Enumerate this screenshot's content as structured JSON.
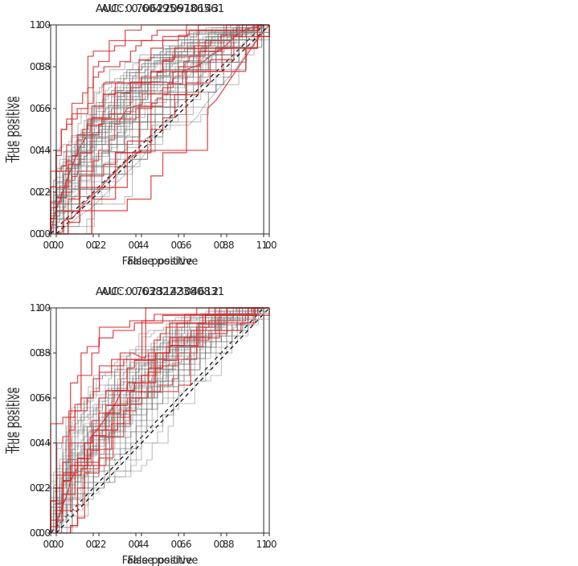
{
  "style": {
    "background": "#ffffff",
    "text_color": "#262626",
    "spine_color": "#2b2b2b",
    "gray_curve_color": "rgba(128,128,128,0.5)",
    "red_curve_color": "rgba(214,39,40,0.78)",
    "diagonal_color": "#141414"
  },
  "chart_data": [
    {
      "type": "line",
      "title": "AUC: 0.706220910143",
      "auc": 0.706220910143,
      "xlabel": "False positive",
      "ylabel": "True positive",
      "xlim": [
        0,
        1
      ],
      "ylim": [
        0,
        1
      ],
      "xticks": [
        "0.0",
        "0.2",
        "0.4",
        "0.6",
        "0.8",
        "1.0"
      ],
      "yticks": [
        "0.0",
        "0.2",
        "0.4",
        "0.6",
        "0.8",
        "1.0"
      ],
      "grid": false,
      "legend": "none",
      "diagonal_reference": true,
      "gray_curves": {
        "n_samples": 70,
        "seed": 101,
        "aucs": [
          0.68,
          0.71,
          0.73,
          0.69,
          0.7,
          0.72,
          0.67,
          0.74,
          0.7,
          0.69,
          0.71,
          0.66,
          0.72,
          0.7,
          0.68,
          0.73,
          0.71,
          0.69,
          0.75,
          0.7,
          0.67,
          0.72,
          0.68,
          0.71,
          0.74,
          0.69,
          0.7,
          0.72
        ]
      },
      "red_curves": {
        "n_samples": 40,
        "seed": 901,
        "aucs": [
          0.88,
          0.85,
          0.8,
          0.76,
          0.71,
          0.67
        ]
      },
      "extra_polylines": [
        {
          "color": "red",
          "points": [
            [
              0,
              0
            ],
            [
              0.02,
              0.1
            ],
            [
              0.05,
              0.18
            ],
            [
              0.08,
              0.27
            ],
            [
              0.11,
              0.35
            ],
            [
              0.14,
              0.42
            ],
            [
              0.17,
              0.47
            ],
            [
              0.17,
              0.52
            ],
            [
              0.24,
              0.52
            ],
            [
              0.24,
              0.55
            ],
            [
              0.33,
              0.55
            ],
            [
              0.36,
              0.6
            ],
            [
              0.43,
              0.62
            ],
            [
              0.43,
              0.67
            ],
            [
              0.55,
              0.67
            ],
            [
              0.55,
              0.72
            ],
            [
              0.62,
              0.72
            ],
            [
              0.62,
              0.78
            ],
            [
              0.7,
              0.81
            ],
            [
              0.76,
              0.86
            ],
            [
              0.82,
              0.9
            ],
            [
              0.87,
              0.95
            ],
            [
              0.92,
              0.98
            ],
            [
              1,
              1
            ]
          ]
        }
      ]
    },
    {
      "type": "line",
      "title": "AUC: 0.604956786561",
      "auc": 0.604956786561,
      "xlabel": "False positive",
      "ylabel": "True positive",
      "xlim": [
        0,
        1
      ],
      "ylim": [
        0,
        1
      ],
      "xticks": [
        "0.0",
        "0.2",
        "0.4",
        "0.6",
        "0.8",
        "1.0"
      ],
      "yticks": [
        "0.0",
        "0.2",
        "0.4",
        "0.6",
        "0.8",
        "1.0"
      ],
      "grid": false,
      "legend": "none",
      "diagonal_reference": true,
      "gray_curves": {
        "n_samples": 28,
        "seed": 202,
        "aucs": [
          0.6,
          0.62,
          0.58,
          0.63,
          0.61,
          0.59,
          0.64,
          0.6,
          0.57,
          0.62,
          0.65,
          0.59,
          0.61,
          0.63,
          0.58,
          0.6,
          0.66,
          0.61,
          0.59,
          0.62,
          0.57,
          0.63,
          0.6,
          0.64,
          0.58,
          0.61,
          0.62,
          0.59
        ]
      },
      "red_curves": {
        "n_samples": 18,
        "seed": 902,
        "aucs": [
          0.67,
          0.64,
          0.62,
          0.6,
          0.58,
          0.55
        ]
      },
      "extra_polylines": [
        {
          "color": "red",
          "points": [
            [
              0,
              0
            ],
            [
              0.03,
              0.01
            ],
            [
              0.03,
              0.06
            ],
            [
              0.08,
              0.08
            ],
            [
              0.12,
              0.13
            ],
            [
              0.16,
              0.18
            ],
            [
              0.2,
              0.21
            ],
            [
              0.24,
              0.26
            ],
            [
              0.29,
              0.31
            ],
            [
              0.34,
              0.36
            ],
            [
              0.4,
              0.4
            ],
            [
              0.71,
              0.4
            ],
            [
              0.71,
              0.6
            ],
            [
              0.75,
              0.64
            ],
            [
              0.79,
              0.7
            ],
            [
              0.83,
              0.76
            ],
            [
              0.87,
              0.82
            ],
            [
              0.91,
              0.88
            ],
            [
              0.95,
              0.94
            ],
            [
              1,
              1
            ]
          ]
        },
        {
          "color": "gray",
          "points": [
            [
              0,
              0
            ],
            [
              0.05,
              0.04
            ],
            [
              0.1,
              0.08
            ],
            [
              0.16,
              0.12
            ],
            [
              0.22,
              0.18
            ],
            [
              0.28,
              0.24
            ],
            [
              0.34,
              0.3
            ],
            [
              0.4,
              0.36
            ],
            [
              0.45,
              0.44
            ],
            [
              0.45,
              0.52
            ],
            [
              0.62,
              0.52
            ],
            [
              0.66,
              0.56
            ],
            [
              0.7,
              0.62
            ],
            [
              0.75,
              0.68
            ],
            [
              0.8,
              0.74
            ],
            [
              0.85,
              0.8
            ],
            [
              0.9,
              0.88
            ],
            [
              0.95,
              0.94
            ],
            [
              1,
              1
            ]
          ]
        }
      ]
    },
    {
      "type": "line",
      "title": "AUC: 0.702314304612",
      "auc": 0.702314304612,
      "xlabel": "False positive",
      "ylabel": "True positive",
      "xlim": [
        0,
        1
      ],
      "ylim": [
        0,
        1
      ],
      "xticks": [
        "0.0",
        "0.2",
        "0.4",
        "0.6",
        "0.8",
        "1.0"
      ],
      "yticks": [
        "0.0",
        "0.2",
        "0.4",
        "0.6",
        "0.8",
        "1.0"
      ],
      "grid": false,
      "legend": "none",
      "diagonal_reference": true,
      "gray_curves": {
        "n_samples": 70,
        "seed": 303,
        "aucs": [
          0.69,
          0.72,
          0.7,
          0.68,
          0.73,
          0.71,
          0.69,
          0.74,
          0.7,
          0.67,
          0.72,
          0.69,
          0.71,
          0.75,
          0.68,
          0.7,
          0.73,
          0.69,
          0.71,
          0.66,
          0.72,
          0.7,
          0.68,
          0.74,
          0.71,
          0.69,
          0.73,
          0.7
        ]
      },
      "red_curves": {
        "n_samples": 35,
        "seed": 903,
        "aucs": [
          0.89,
          0.84,
          0.8,
          0.75,
          0.68,
          0.63,
          0.59
        ]
      },
      "extra_polylines": []
    },
    {
      "type": "line",
      "title": "AUC: 0.638222380831",
      "auc": 0.638222380831,
      "xlabel": "False positive",
      "ylabel": "True positive",
      "xlim": [
        0,
        1
      ],
      "ylim": [
        0,
        1
      ],
      "xticks": [
        "0.0",
        "0.2",
        "0.4",
        "0.6",
        "0.8",
        "1.0"
      ],
      "yticks": [
        "0.0",
        "0.2",
        "0.4",
        "0.6",
        "0.8",
        "1.0"
      ],
      "grid": false,
      "legend": "none",
      "diagonal_reference": true,
      "gray_curves": {
        "n_samples": 40,
        "seed": 404,
        "aucs": [
          0.62,
          0.65,
          0.6,
          0.64,
          0.61,
          0.66,
          0.59,
          0.63,
          0.67,
          0.61,
          0.64,
          0.58,
          0.62,
          0.65,
          0.6,
          0.63,
          0.68,
          0.61,
          0.59,
          0.64,
          0.62,
          0.66,
          0.6,
          0.63,
          0.57,
          0.65,
          0.62,
          0.61
        ]
      },
      "red_curves": {
        "n_samples": 30,
        "seed": 904,
        "aucs": [
          0.74,
          0.71,
          0.68,
          0.66,
          0.63,
          0.6
        ]
      },
      "extra_polylines": [
        {
          "color": "red",
          "points": [
            [
              0,
              0
            ],
            [
              0.01,
              0.07
            ],
            [
              0.03,
              0.12
            ],
            [
              0.05,
              0.17
            ],
            [
              0.07,
              0.24
            ],
            [
              0.1,
              0.29
            ],
            [
              0.1,
              0.33
            ],
            [
              0.16,
              0.33
            ],
            [
              0.16,
              0.42
            ],
            [
              0.2,
              0.47
            ],
            [
              0.24,
              0.52
            ],
            [
              0.28,
              0.58
            ],
            [
              0.3,
              0.62
            ],
            [
              0.3,
              0.8
            ],
            [
              0.36,
              0.8
            ],
            [
              0.4,
              0.78
            ],
            [
              0.42,
              0.78
            ],
            [
              0.42,
              1.0
            ],
            [
              1,
              1
            ]
          ]
        }
      ]
    }
  ]
}
